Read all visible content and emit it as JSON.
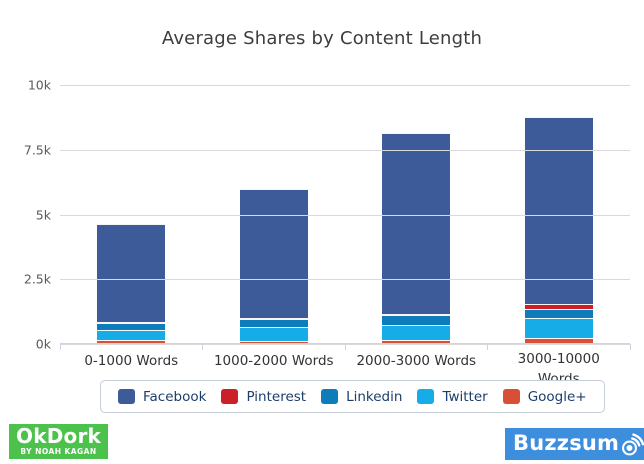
{
  "chart": {
    "title": "Average Shares by Content Length"
  },
  "chart_data": {
    "type": "bar",
    "stacked": true,
    "title": "Average Shares by Content Length",
    "xlabel": "",
    "ylabel": "",
    "categories": [
      "0-1000 Words",
      "1000-2000 Words",
      "2000-3000 Words",
      "3000-10000 Words"
    ],
    "series": [
      {
        "name": "Facebook",
        "color": "#3e5b99",
        "values": [
          3780,
          4980,
          6990,
          7250
        ]
      },
      {
        "name": "Pinterest",
        "color": "#cb2027",
        "values": [
          40,
          50,
          60,
          180
        ]
      },
      {
        "name": "Linkedin",
        "color": "#0c7cba",
        "values": [
          260,
          320,
          370,
          330
        ]
      },
      {
        "name": "Twitter",
        "color": "#16ace8",
        "values": [
          400,
          540,
          600,
          800
        ]
      },
      {
        "name": "Google+",
        "color": "#d94f35",
        "values": [
          150,
          100,
          140,
          220
        ]
      }
    ],
    "stack_order_bottom_to_top": [
      "Google+",
      "Twitter",
      "Linkedin",
      "Pinterest",
      "Facebook"
    ],
    "totals": [
      4630,
      5990,
      8160,
      8780
    ],
    "ylim": [
      0,
      10000
    ],
    "yticks": [
      {
        "label": "0k",
        "value": 0
      },
      {
        "label": "2.5k",
        "value": 2500
      },
      {
        "label": "5k",
        "value": 5000
      },
      {
        "label": "7.5k",
        "value": 7500
      },
      {
        "label": "10k",
        "value": 10000
      }
    ],
    "grid": true,
    "legend_position": "bottom"
  },
  "logos": {
    "okdork": {
      "title": "OkDork",
      "subtitle": "BY NOAH KAGAN",
      "bg": "#4cc24c"
    },
    "buzzsumo": {
      "text": "Buzzsumo",
      "bg": "#3e8ede"
    }
  },
  "colors": {
    "gridline": "#d9d9d9",
    "axis": "#c9d6ea",
    "title_text": "#3d3d3d",
    "ytick_text": "#5a5a5a",
    "xlabel_text": "#333333",
    "legend_text": "#1c3e6b",
    "legend_border": "#c6cdd8"
  }
}
